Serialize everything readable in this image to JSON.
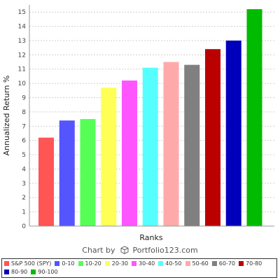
{
  "chart_data": {
    "type": "bar",
    "title": "",
    "xlabel": "Ranks",
    "ylabel": "Annualized Return %",
    "ylim": [
      0,
      15.5
    ],
    "yticks": [
      0,
      1,
      2,
      3,
      4,
      5,
      6,
      7,
      8,
      9,
      10,
      11,
      12,
      13,
      14,
      15
    ],
    "grid": true,
    "legend_position": "bottom",
    "categories": [
      "S&P 500 (SPY)",
      "0-10",
      "10-20",
      "20-30",
      "30-40",
      "40-50",
      "50-60",
      "60-70",
      "70-80",
      "80-90",
      "90-100"
    ],
    "values": [
      6.2,
      7.4,
      7.5,
      9.7,
      10.2,
      11.1,
      11.5,
      11.3,
      12.4,
      13.0,
      15.2
    ],
    "colors": [
      "#ff5555",
      "#5555ff",
      "#55ff55",
      "#ffff55",
      "#ff55ff",
      "#55ffff",
      "#ffaaaa",
      "#808080",
      "#bb0000",
      "#0000bb",
      "#00bb00"
    ]
  },
  "credit": {
    "prefix": "Chart by",
    "brand": "Portfolio123.com",
    "icon": "cube-logo-icon"
  }
}
